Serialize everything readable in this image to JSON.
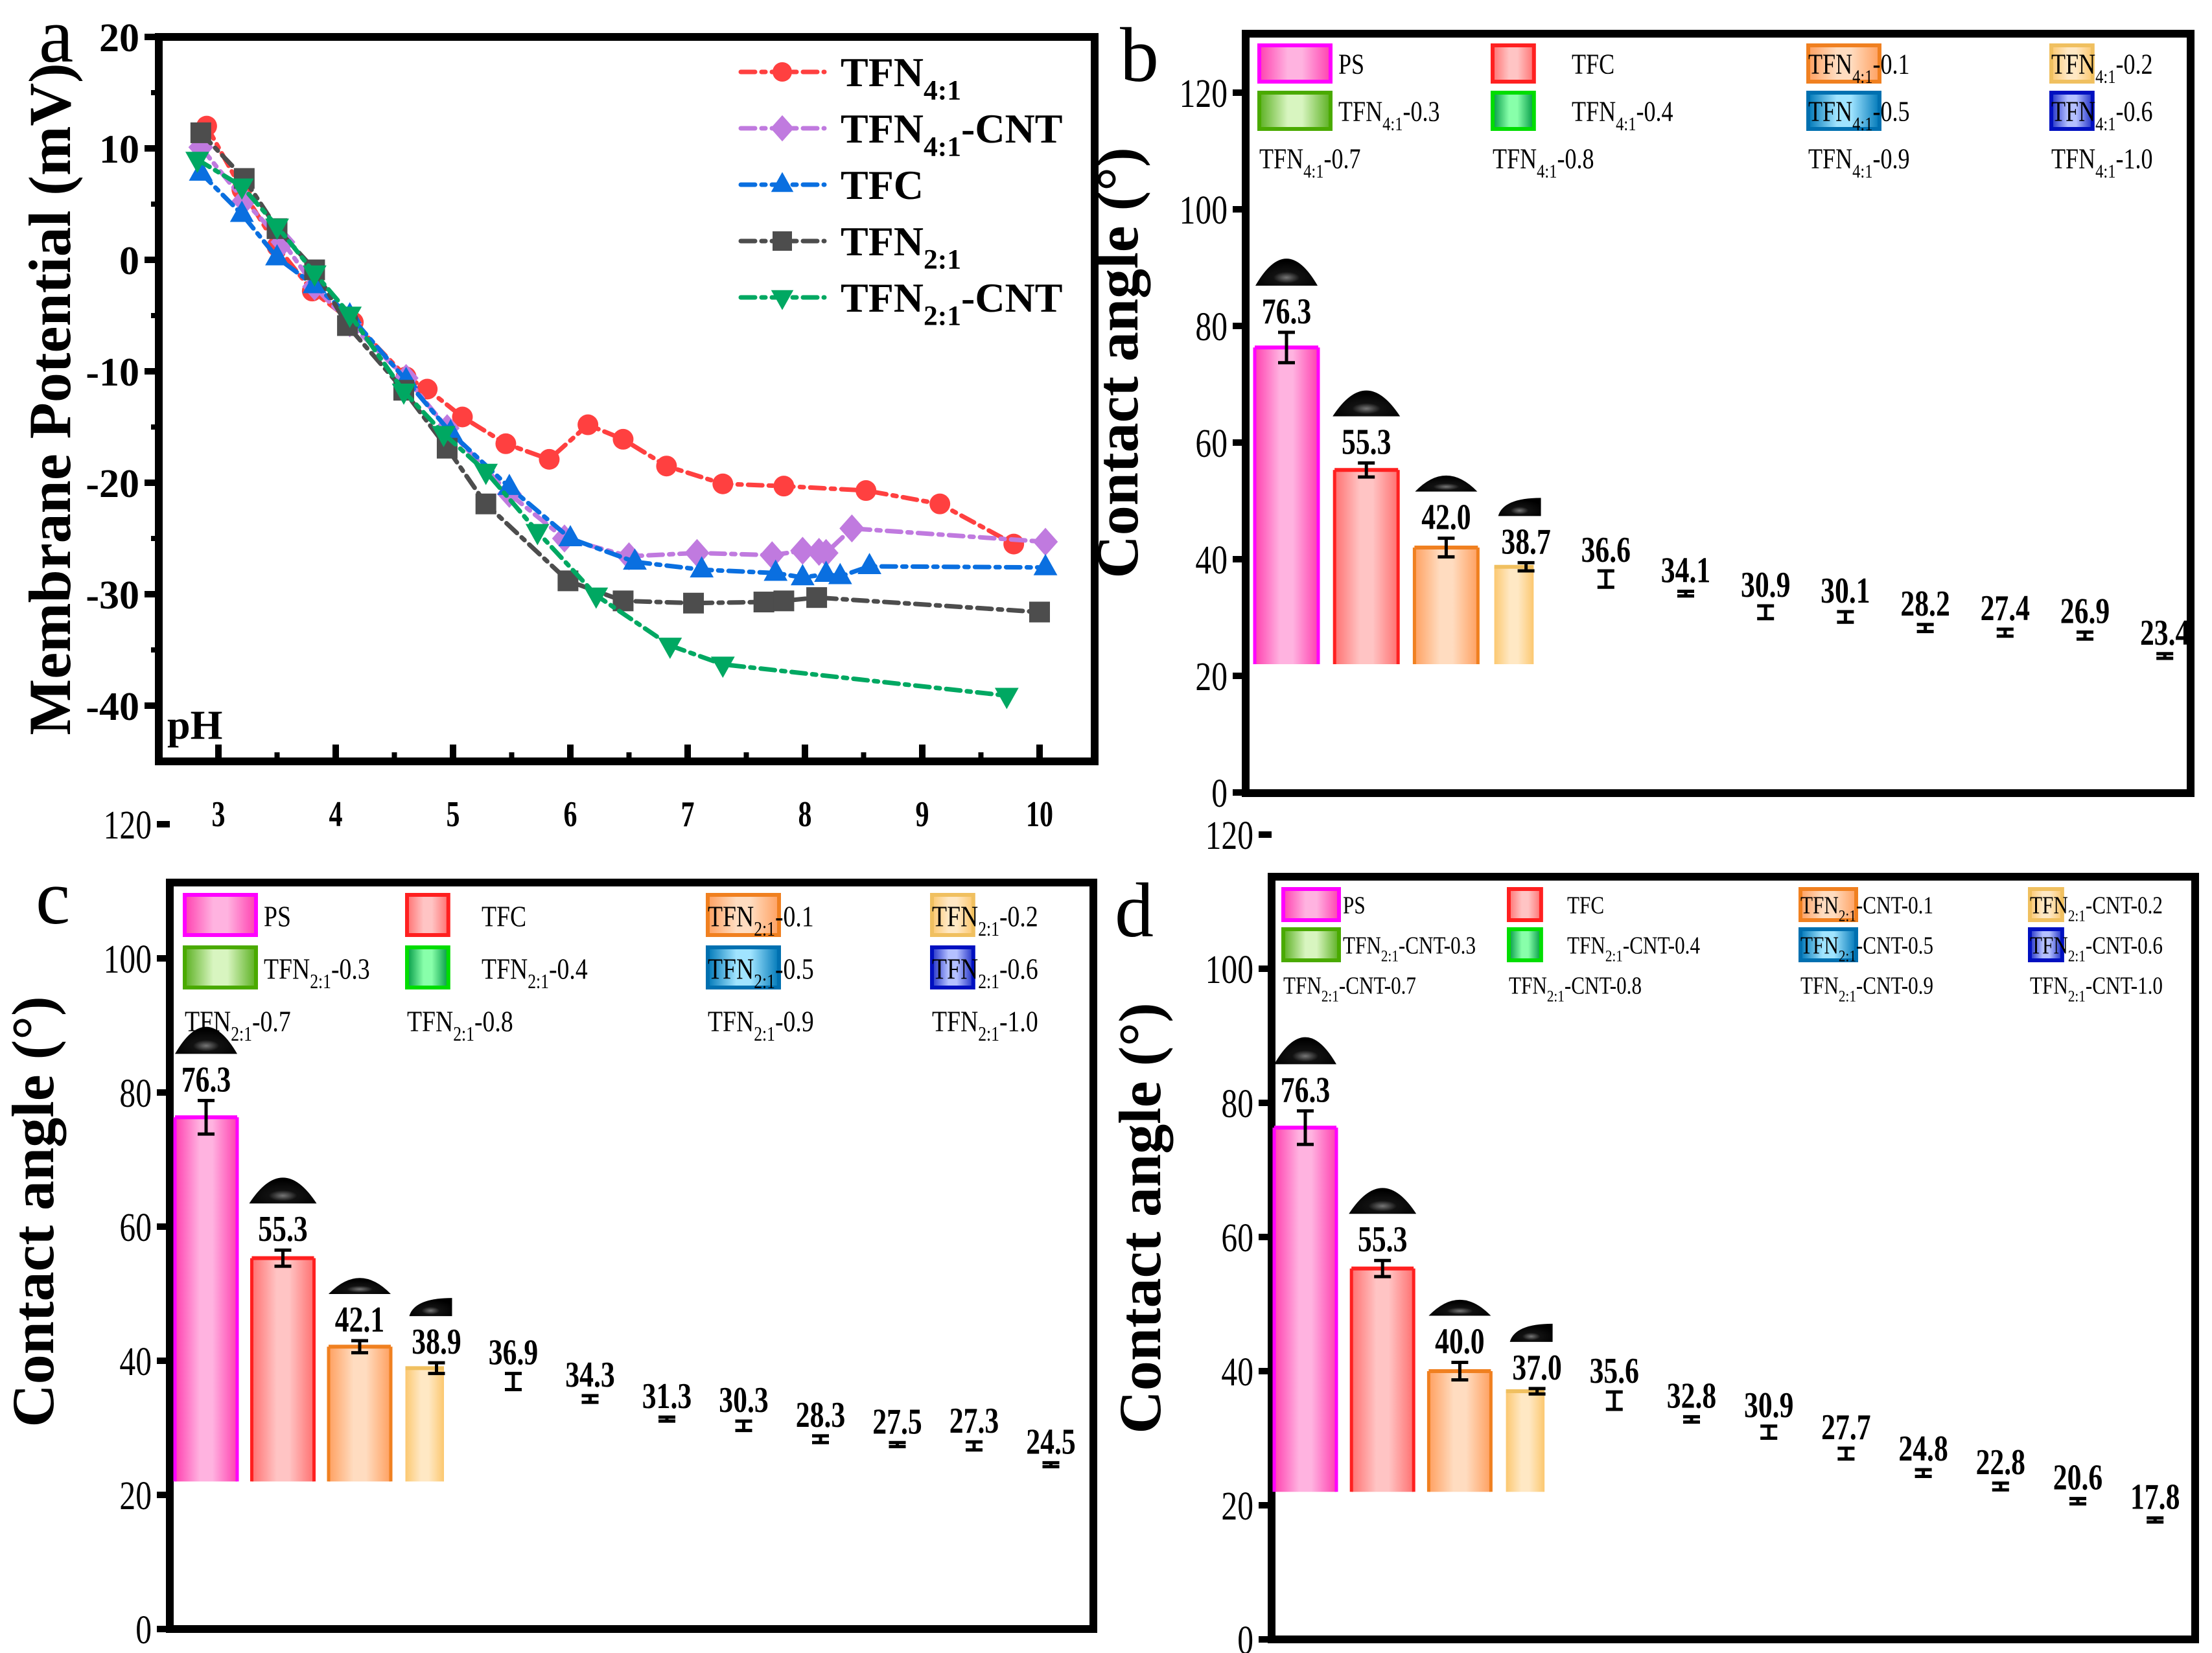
{
  "figure": {
    "panel_labels": [
      "a",
      "b",
      "c",
      "d"
    ]
  },
  "chart_data": [
    {
      "panel": "a",
      "type": "line",
      "title": "",
      "xlabel": "pH",
      "ylabel": "Membrane Potential (mV)",
      "xlim": [
        2.5,
        10.45
      ],
      "ylim": [
        -45,
        20
      ],
      "xticks": [
        3,
        4,
        5,
        6,
        7,
        8,
        9,
        10
      ],
      "yticks": [
        20,
        10,
        0,
        -10,
        -20,
        -30,
        -40
      ],
      "grid": false,
      "legend_position": "top-right",
      "series": [
        {
          "name": "TFN",
          "sub": "4:1",
          "suffix": "",
          "color": "#FF4040",
          "marker": "circle",
          "x": [
            2.9,
            3.2,
            3.5,
            3.8,
            4.15,
            4.6,
            4.78,
            5.08,
            5.45,
            5.82,
            6.15,
            6.45,
            6.82,
            7.3,
            7.82,
            8.52,
            9.15,
            9.78
          ],
          "y": [
            12.0,
            6.3,
            1.2,
            -2.8,
            -5.6,
            -10.5,
            -11.6,
            -14.1,
            -16.5,
            -17.9,
            -14.8,
            -16.1,
            -18.5,
            -20.1,
            -20.3,
            -20.7,
            -21.9,
            -25.5
          ]
        },
        {
          "name": "TFN",
          "sub": "4:1",
          "suffix": "-CNT",
          "color": "#C07ADF",
          "marker": "diamond",
          "x": [
            2.85,
            3.22,
            3.55,
            3.82,
            4.12,
            4.6,
            4.95,
            5.48,
            5.95,
            6.5,
            7.08,
            7.72,
            7.98,
            8.12,
            8.18,
            8.4,
            10.05
          ],
          "y": [
            10.1,
            5.3,
            1.6,
            -2.4,
            -5.7,
            -10.6,
            -15.1,
            -21.0,
            -25.0,
            -26.6,
            -26.3,
            -26.5,
            -26.1,
            -26.2,
            -26.3,
            -24.1,
            -25.3
          ]
        },
        {
          "name": "TFC",
          "sub": "",
          "suffix": "",
          "color": "#0A6FE0",
          "marker": "triangle-up",
          "x": [
            2.85,
            3.2,
            3.5,
            3.82,
            4.12,
            4.6,
            4.98,
            5.48,
            6.0,
            6.55,
            7.12,
            7.75,
            7.98,
            8.18,
            8.3,
            8.55,
            10.05
          ],
          "y": [
            7.8,
            4.1,
            0.2,
            -2.3,
            -5.0,
            -10.8,
            -15.5,
            -20.4,
            -25.0,
            -27.1,
            -27.8,
            -28.1,
            -28.5,
            -28.2,
            -28.4,
            -27.5,
            -27.6
          ]
        },
        {
          "name": "TFN",
          "sub": "2:1",
          "suffix": "",
          "color": "#4D4D4D",
          "marker": "square",
          "x": [
            2.85,
            3.22,
            3.5,
            3.82,
            4.1,
            4.58,
            4.95,
            5.28,
            5.98,
            6.45,
            7.05,
            7.65,
            7.82,
            8.1,
            10.0
          ],
          "y": [
            11.4,
            7.3,
            2.8,
            -0.9,
            -5.9,
            -11.7,
            -16.9,
            -21.9,
            -28.8,
            -30.6,
            -30.8,
            -30.7,
            -30.6,
            -30.3,
            -31.6
          ]
        },
        {
          "name": "TFN",
          "sub": "2:1",
          "suffix": "-CNT",
          "color": "#00A862",
          "marker": "triangle-down",
          "x": [
            2.82,
            3.2,
            3.5,
            3.82,
            4.12,
            4.58,
            4.92,
            5.28,
            5.72,
            6.22,
            6.85,
            7.3,
            9.72
          ],
          "y": [
            9.0,
            6.6,
            3.0,
            -1.2,
            -4.9,
            -11.8,
            -15.6,
            -19.0,
            -24.4,
            -30.1,
            -34.6,
            -36.3,
            -39.1
          ]
        }
      ]
    },
    {
      "panel": "b",
      "type": "bar",
      "title": "",
      "xlabel": "",
      "ylabel": "Contact angle (°)",
      "ylim": [
        0,
        130
      ],
      "yticks": [
        0,
        20,
        40,
        60,
        80,
        100,
        120
      ],
      "bar_baseline": 22,
      "grid": false,
      "legend_position": "top",
      "categories": [
        {
          "name": "PS",
          "sub": "",
          "suffix": ""
        },
        {
          "name": "TFC",
          "sub": "",
          "suffix": ""
        },
        {
          "name": "TFN",
          "sub": "4:1",
          "suffix": "-0.1"
        },
        {
          "name": "TFN",
          "sub": "4:1",
          "suffix": "-0.2"
        },
        {
          "name": "TFN",
          "sub": "4:1",
          "suffix": "-0.3"
        },
        {
          "name": "TFN",
          "sub": "4:1",
          "suffix": "-0.4"
        },
        {
          "name": "TFN",
          "sub": "4:1",
          "suffix": "-0.5"
        },
        {
          "name": "TFN",
          "sub": "4:1",
          "suffix": "-0.6"
        },
        {
          "name": "TFN",
          "sub": "4:1",
          "suffix": "-0.7"
        },
        {
          "name": "TFN",
          "sub": "4:1",
          "suffix": "-0.8"
        },
        {
          "name": "TFN",
          "sub": "4:1",
          "suffix": "-0.9"
        },
        {
          "name": "TFN",
          "sub": "4:1",
          "suffix": "-1.0"
        }
      ],
      "values": [
        76.3,
        55.3,
        42.0,
        38.7,
        36.6,
        34.1,
        30.9,
        30.1,
        28.2,
        27.4,
        26.9,
        23.4
      ],
      "errors": [
        2.6,
        1.2,
        1.6,
        0.7,
        1.4,
        0.4,
        1.1,
        0.9,
        0.6,
        0.6,
        0.6,
        0.4
      ],
      "data_labels": [
        "76.3",
        "55.3",
        "42.0",
        "38.7",
        "36.6",
        "34.1",
        "30.9",
        "30.1",
        "28.2",
        "27.4",
        "26.9",
        "23.4"
      ]
    },
    {
      "panel": "c",
      "type": "bar",
      "title": "",
      "xlabel": "",
      "ylabel": "Contact angle (°)",
      "ylim": [
        0,
        130
      ],
      "yticks": [
        0,
        20,
        40,
        60,
        80,
        100,
        120
      ],
      "bar_baseline": 22,
      "grid": false,
      "legend_position": "top",
      "categories": [
        {
          "name": "PS",
          "sub": "",
          "suffix": ""
        },
        {
          "name": "TFC",
          "sub": "",
          "suffix": ""
        },
        {
          "name": "TFN",
          "sub": "2:1",
          "suffix": "-0.1"
        },
        {
          "name": "TFN",
          "sub": "2:1",
          "suffix": "-0.2"
        },
        {
          "name": "TFN",
          "sub": "2:1",
          "suffix": "-0.3"
        },
        {
          "name": "TFN",
          "sub": "2:1",
          "suffix": "-0.4"
        },
        {
          "name": "TFN",
          "sub": "2:1",
          "suffix": "-0.5"
        },
        {
          "name": "TFN",
          "sub": "2:1",
          "suffix": "-0.6"
        },
        {
          "name": "TFN",
          "sub": "2:1",
          "suffix": "-0.7"
        },
        {
          "name": "TFN",
          "sub": "2:1",
          "suffix": "-0.8"
        },
        {
          "name": "TFN",
          "sub": "2:1",
          "suffix": "-0.9"
        },
        {
          "name": "TFN",
          "sub": "2:1",
          "suffix": "-1.0"
        }
      ],
      "values": [
        76.3,
        55.3,
        42.1,
        38.9,
        36.9,
        34.3,
        31.3,
        30.3,
        28.3,
        27.5,
        27.3,
        24.5
      ],
      "errors": [
        2.5,
        1.2,
        0.9,
        0.8,
        1.2,
        0.5,
        0.3,
        0.7,
        0.5,
        0.3,
        0.6,
        0.3
      ],
      "data_labels": [
        "76.3",
        "55.3",
        "42.1",
        "38.9",
        "36.9",
        "34.3",
        "31.3",
        "30.3",
        "28.3",
        "27.5",
        "27.3",
        "24.5"
      ]
    },
    {
      "panel": "d",
      "type": "bar",
      "title": "",
      "xlabel": "",
      "ylabel": "Contact angle (°)",
      "ylim": [
        0,
        130
      ],
      "yticks": [
        0,
        20,
        40,
        60,
        80,
        100,
        120
      ],
      "bar_baseline": 22,
      "grid": false,
      "legend_position": "top",
      "categories": [
        {
          "name": "PS",
          "sub": "",
          "suffix": ""
        },
        {
          "name": "TFC",
          "sub": "",
          "suffix": ""
        },
        {
          "name": "TFN",
          "sub": "2:1",
          "suffix": "-CNT-0.1"
        },
        {
          "name": "TFN",
          "sub": "2:1",
          "suffix": "-CNT-0.2"
        },
        {
          "name": "TFN",
          "sub": "2:1",
          "suffix": "-CNT-0.3"
        },
        {
          "name": "TFN",
          "sub": "2:1",
          "suffix": "-CNT-0.4"
        },
        {
          "name": "TFN",
          "sub": "2:1",
          "suffix": "-CNT-0.5"
        },
        {
          "name": "TFN",
          "sub": "2:1",
          "suffix": "-CNT-0.6"
        },
        {
          "name": "TFN",
          "sub": "2:1",
          "suffix": "-CNT-0.7"
        },
        {
          "name": "TFN",
          "sub": "2:1",
          "suffix": "-CNT-0.8"
        },
        {
          "name": "TFN",
          "sub": "2:1",
          "suffix": "-CNT-0.9"
        },
        {
          "name": "TFN",
          "sub": "2:1",
          "suffix": "-CNT-1.0"
        }
      ],
      "values": [
        76.3,
        55.3,
        40.0,
        37.0,
        35.6,
        32.8,
        30.9,
        27.7,
        24.8,
        22.8,
        20.6,
        17.8
      ],
      "errors": [
        2.5,
        1.2,
        1.3,
        0.4,
        1.3,
        0.4,
        0.9,
        0.8,
        0.5,
        0.5,
        0.4,
        0.3
      ],
      "data_labels": [
        "76.3",
        "55.3",
        "40.0",
        "37.0",
        "35.6",
        "32.8",
        "30.9",
        "27.7",
        "24.8",
        "22.8",
        "20.6",
        "17.8"
      ]
    }
  ],
  "bar_styles": [
    {
      "edge": "#FF00FF",
      "dark": "#FF40B0",
      "light": "#FFB3E0"
    },
    {
      "edge": "#FF2020",
      "dark": "#FF7070",
      "light": "#FFC4C4"
    },
    {
      "edge": "#F08020",
      "dark": "#FFA060",
      "light": "#FFDCC0"
    },
    {
      "edge": "#F0C060",
      "dark": "#FCC870",
      "light": "#FFE8C4"
    },
    {
      "edge": "#4AAA00",
      "dark": "#5AB020",
      "light": "#D8F5C0"
    },
    {
      "edge": "#00DD00",
      "dark": "#009944",
      "light": "#88FFAA"
    },
    {
      "edge": "#0070B0",
      "dark": "#0078B8",
      "light": "#A0E4FF"
    },
    {
      "edge": "#0010C0",
      "dark": "#2030C8",
      "light": "#B4C0FF"
    }
  ],
  "droplet_color": "#111111"
}
